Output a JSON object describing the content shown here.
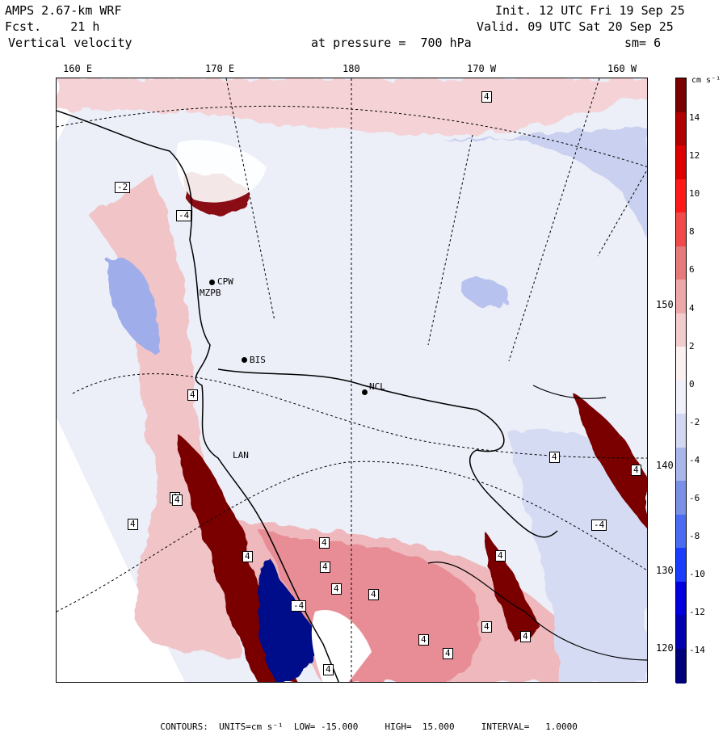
{
  "header": {
    "model": "AMPS 2.67-km WRF",
    "forecast": "Fcst.    21 h",
    "field": "Vertical velocity",
    "init": "Init. 12 UTC Fri 19 Sep 25",
    "valid": "Valid. 09 UTC Sat 20 Sep 25",
    "pressure_label": "at pressure =  700 hPa",
    "smoothing": "sm= 6"
  },
  "longitude_labels": [
    "160 E",
    "170 E",
    "180",
    "170 W",
    "160 W"
  ],
  "latitude_labels": [
    "150 W",
    "140 W",
    "130 W",
    "120 W"
  ],
  "colorbar": {
    "units": "cm s⁻¹",
    "ticks": [
      "14",
      "12",
      "10",
      "8",
      "6",
      "4",
      "2",
      "0",
      "-2",
      "-4",
      "-6",
      "-8",
      "-10",
      "-12",
      "-14"
    ],
    "colors": [
      "#00007a",
      "#0000b0",
      "#0000dd",
      "#1a3cff",
      "#4a6cf0",
      "#7a90e6",
      "#a8b6ec",
      "#d2d8f2",
      "#f0f0fa",
      "#faf0f0",
      "#f2cccc",
      "#eca8a8",
      "#e67a7a",
      "#f04a4a",
      "#ff1a1a",
      "#dd0000",
      "#b00000",
      "#7a0000"
    ]
  },
  "stations": [
    {
      "label": "CPW"
    },
    {
      "label": "MZPB"
    },
    {
      "label": "BIS"
    },
    {
      "label": "NCL"
    },
    {
      "label": "LAN"
    }
  ],
  "contour_labels": [
    "-2",
    "-4",
    "4",
    "4",
    "4",
    "4",
    "4",
    "4",
    "4",
    "-4",
    "4",
    "4",
    "4",
    "4",
    "4",
    "4",
    "-4",
    "4",
    "4",
    "4",
    "4",
    "4"
  ],
  "footer": {
    "contours": "CONTOURS:",
    "units": "UNITS=cm s⁻¹",
    "low": "LOW= -15.000",
    "high": "HIGH=  15.000",
    "interval": "INTERVAL=   1.0000"
  }
}
